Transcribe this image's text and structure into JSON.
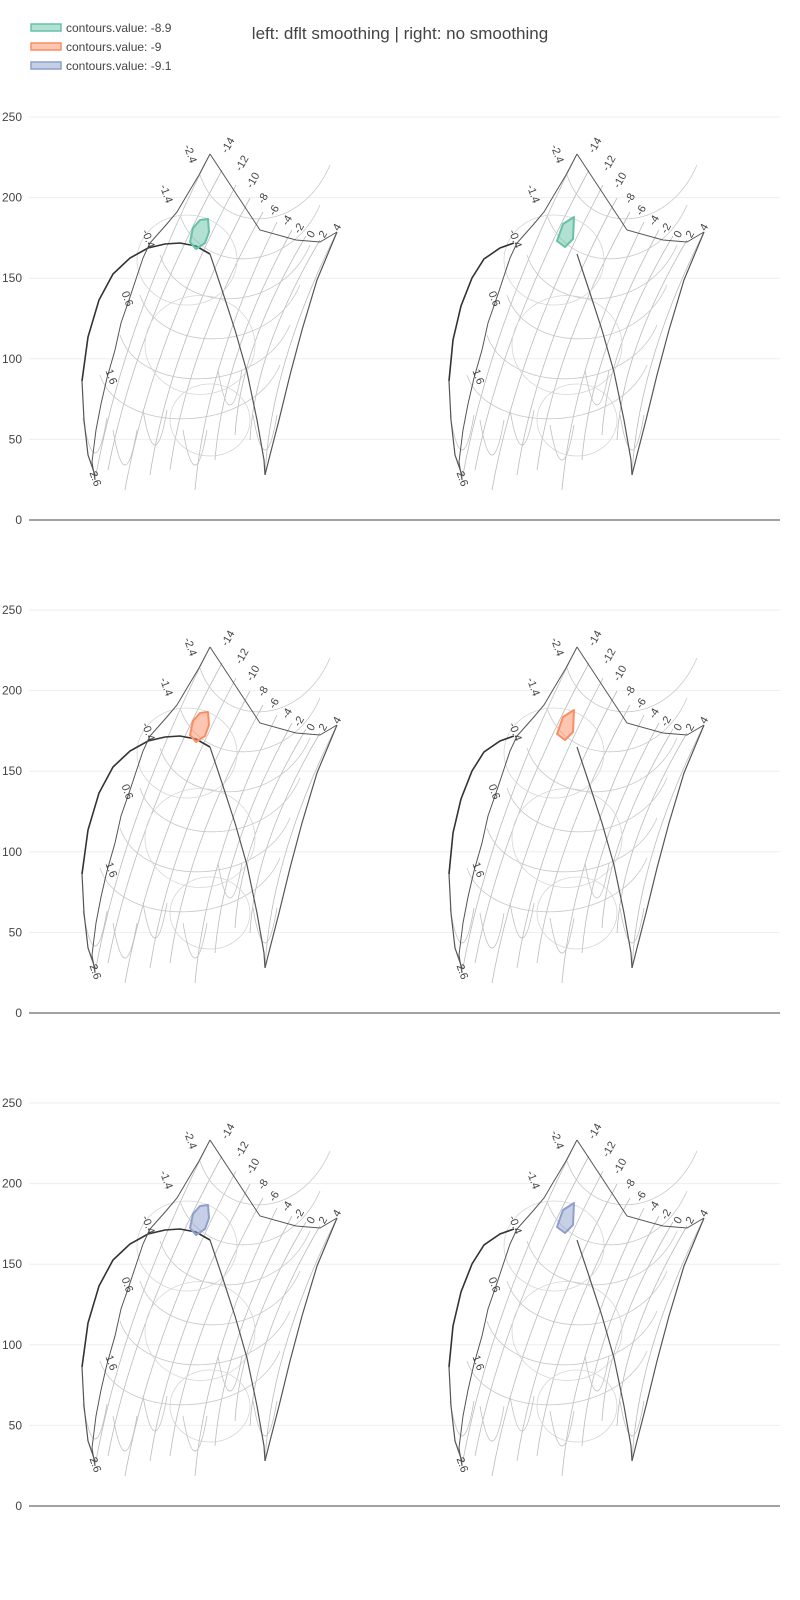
{
  "title": "left: dflt smoothing | right: no smoothing",
  "legend": [
    {
      "label": "contours.value: -8.9",
      "color": "#66c2a5"
    },
    {
      "label": "contours.value: -9",
      "color": "#fc8d62"
    },
    {
      "label": "contours.value: -9.1",
      "color": "#8da0cb"
    }
  ],
  "chart_data": {
    "type": "carpet-contour",
    "yaxis": {
      "range": [
        0,
        260
      ],
      "ticks": [
        0,
        50,
        100,
        150,
        200,
        250
      ],
      "grid": true
    },
    "a_axis_labels": [
      "-2.4",
      "-1.4",
      "-0.4",
      "0.6",
      "1.6",
      "2.6"
    ],
    "b_axis_labels": [
      "-14",
      "-12",
      "-10",
      "-8",
      "-6",
      "-4",
      "-2",
      "0",
      "2",
      "4"
    ],
    "rows": [
      {
        "contour_value": -8.9,
        "color": "#66c2a5"
      },
      {
        "contour_value": -9,
        "color": "#fc8d62"
      },
      {
        "contour_value": -9.1,
        "color": "#8da0cb"
      }
    ],
    "columns": [
      {
        "smoothing": "dflt"
      },
      {
        "smoothing": "no"
      }
    ]
  }
}
